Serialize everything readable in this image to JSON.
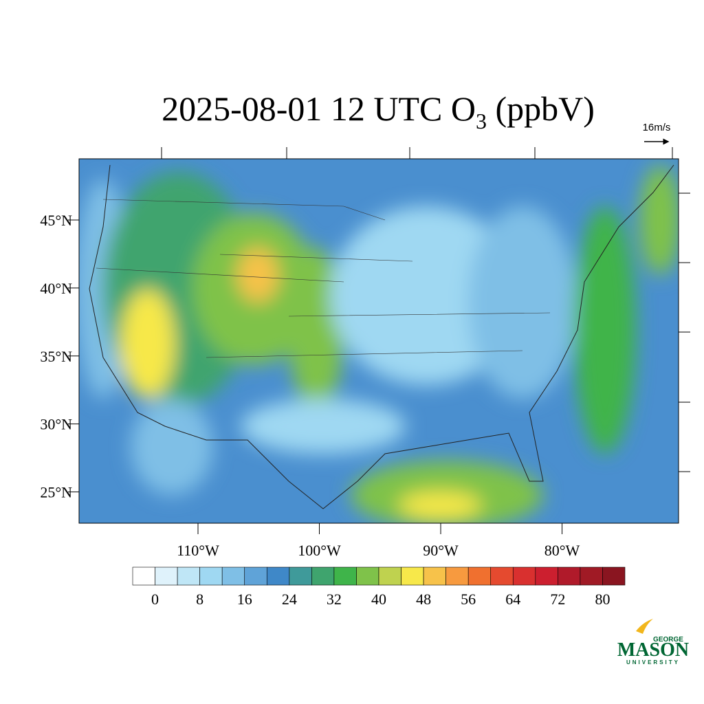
{
  "title": {
    "main": "2025-08-01 12 UTC O",
    "subscript": "3",
    "suffix": " (ppbV)"
  },
  "reference_vector": "16m/s",
  "map": {
    "xlim": [
      -119.8,
      -70.4
    ],
    "ylim": [
      22.7,
      49.5
    ],
    "lat_ticks": [
      {
        "value": 45,
        "label": "45°N"
      },
      {
        "value": 40,
        "label": "40°N"
      },
      {
        "value": 35,
        "label": "35°N"
      },
      {
        "value": 30,
        "label": "30°N"
      },
      {
        "value": 25,
        "label": "25°N"
      }
    ],
    "lon_ticks": [
      {
        "value": -110,
        "label": "110°W"
      },
      {
        "value": -100,
        "label": "100°W"
      },
      {
        "value": -90,
        "label": "90°W"
      },
      {
        "value": -80,
        "label": "80°W"
      }
    ]
  },
  "colorbar": {
    "lim": [
      -4,
      84
    ],
    "ticks": [
      0,
      8,
      16,
      24,
      32,
      40,
      48,
      56,
      64,
      72,
      80
    ],
    "colors": [
      "#ffffff",
      "#dff2fb",
      "#bfe6f6",
      "#9fd8f2",
      "#7fbfe6",
      "#5fa3d8",
      "#3f88c8",
      "#3f9a9a",
      "#3fa46e",
      "#3fb44a",
      "#7fc24a",
      "#bfd24f",
      "#f7e84a",
      "#f7c24a",
      "#f79a3f",
      "#f0702f",
      "#e54a2f",
      "#d9302f",
      "#cc1f2f",
      "#b01a2a",
      "#a01a25",
      "#8a1520"
    ]
  },
  "logo": {
    "top": "GEORGE",
    "name": "MASON",
    "bottom": "UNIVERSITY"
  }
}
